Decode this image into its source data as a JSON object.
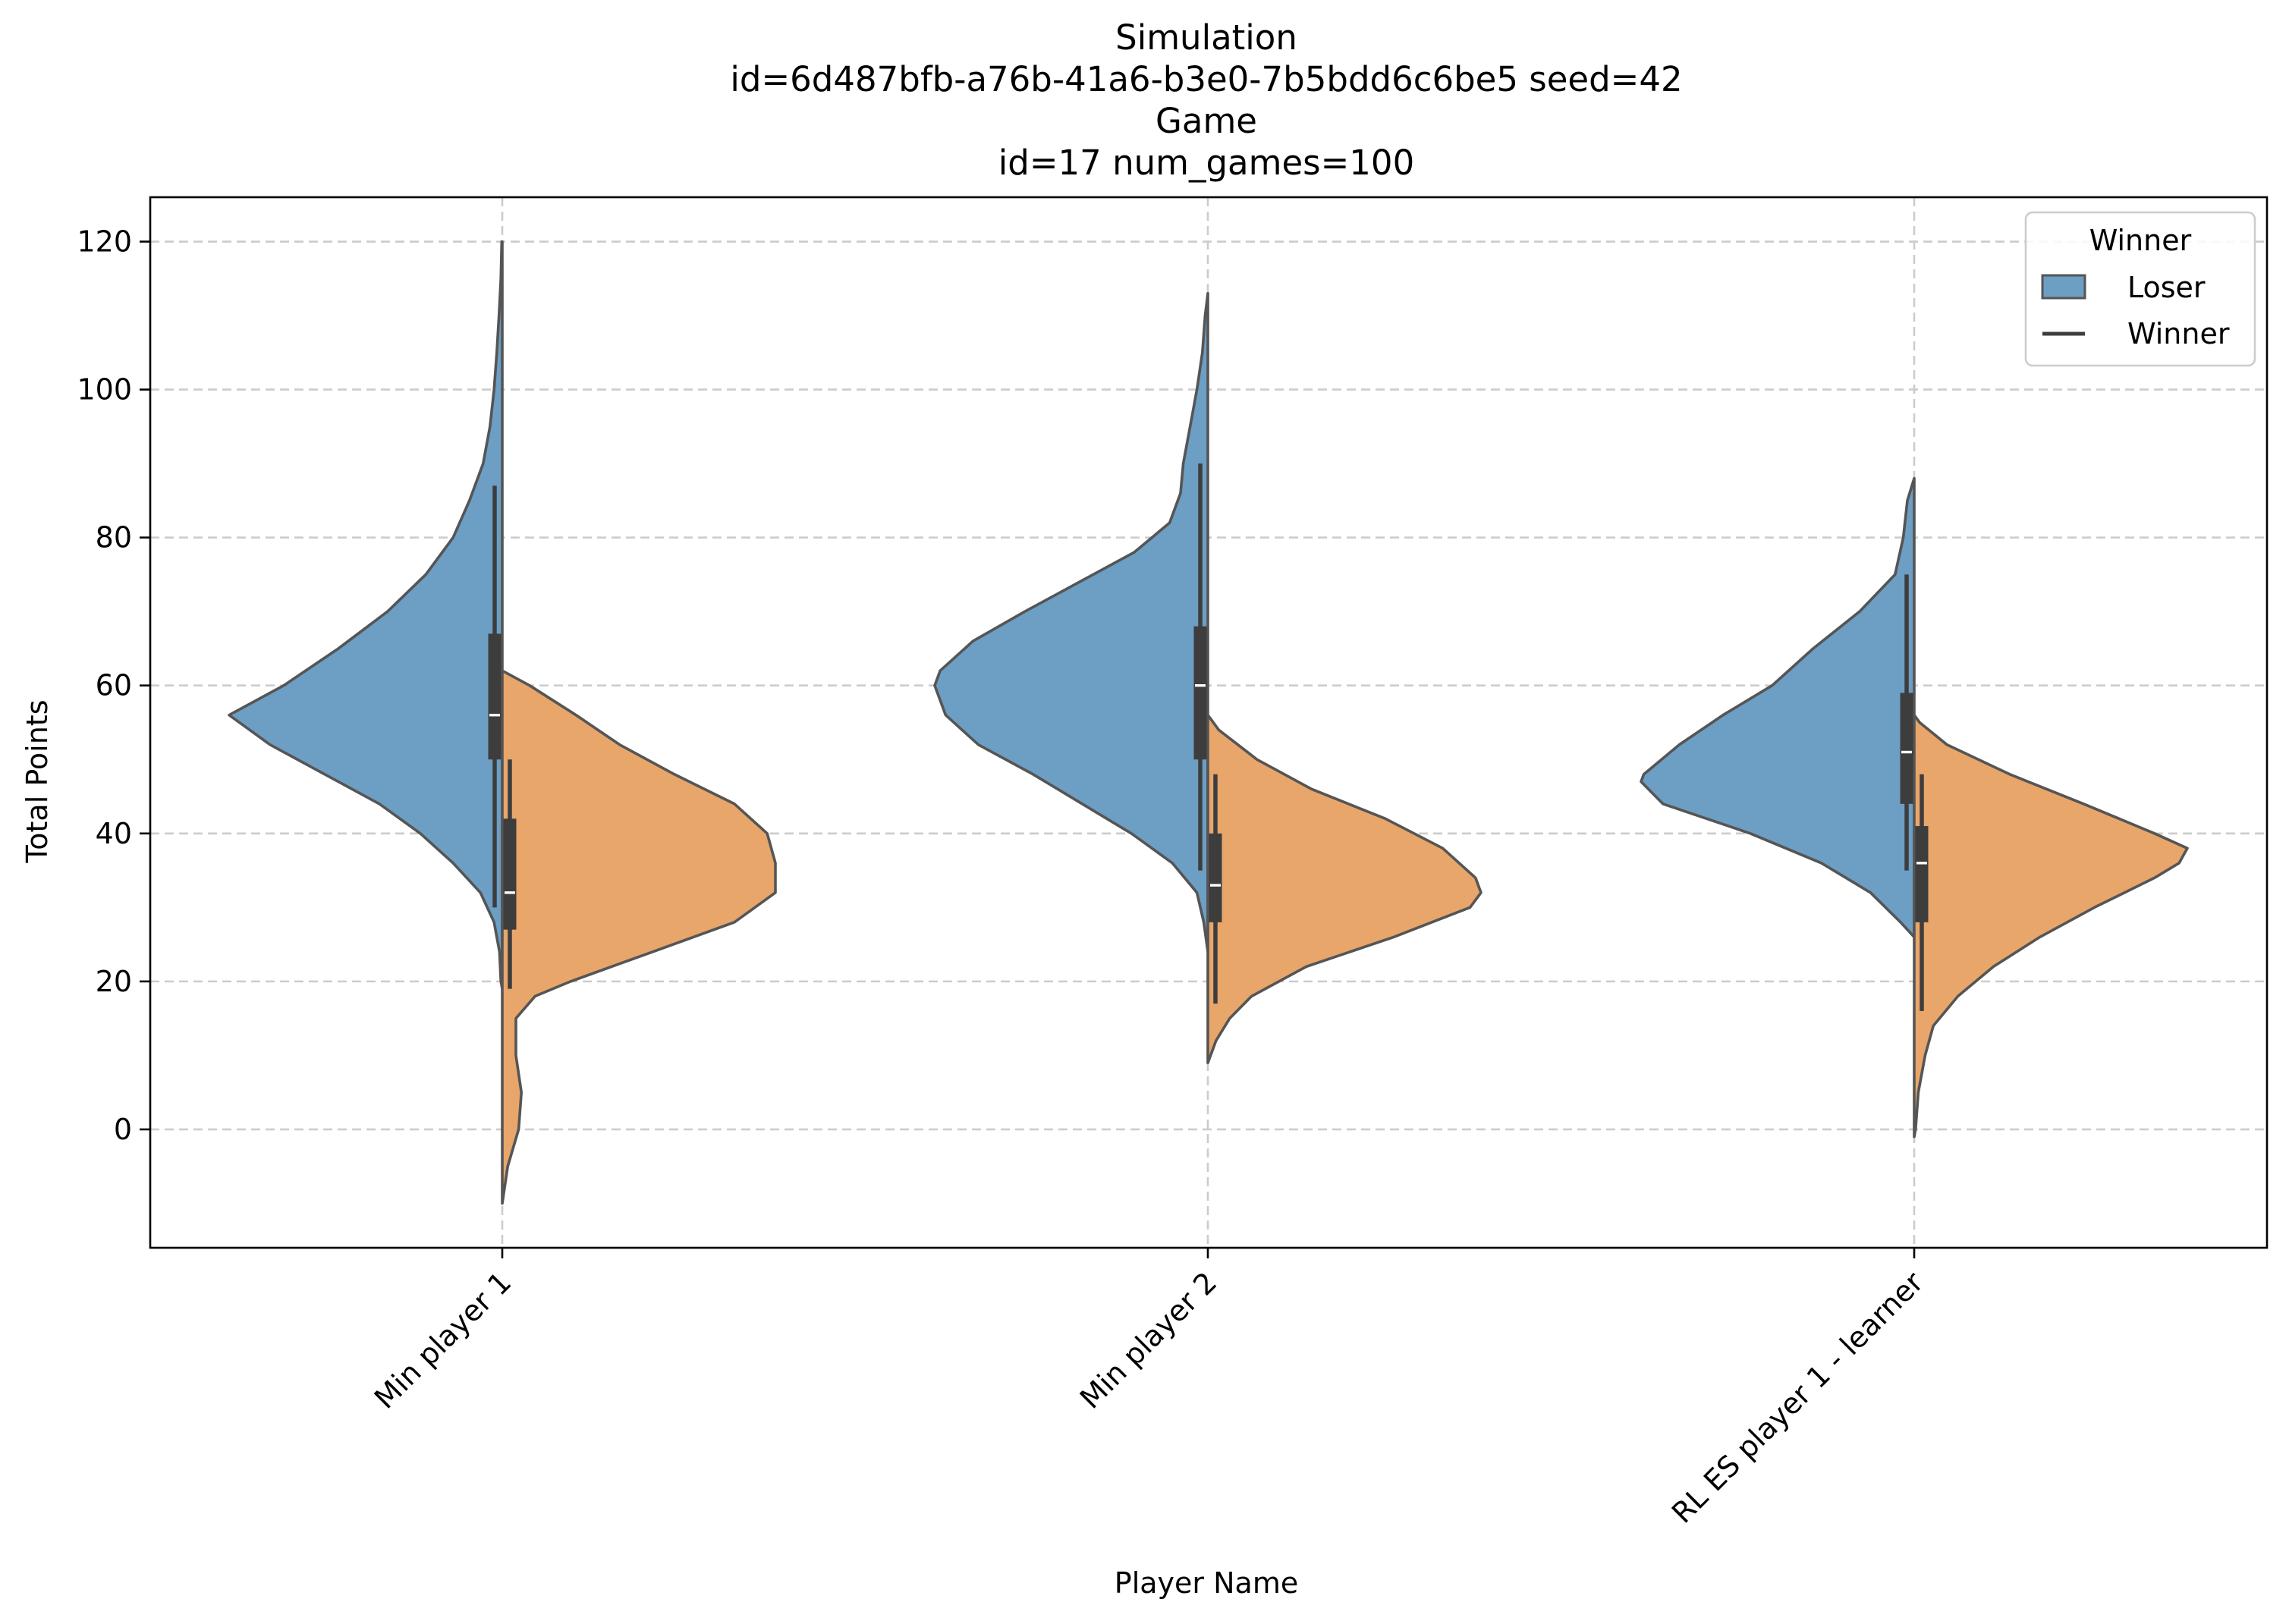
{
  "chart_data": {
    "type": "violin",
    "title": [
      "Simulation",
      "id=6d487bfb-a76b-41a6-b3e0-7b5bdd6c6be5 seed=42",
      "Game",
      "id=17 num_games=100"
    ],
    "xlabel": "Player Name",
    "ylabel": "Total Points",
    "ylim": [
      -16,
      126
    ],
    "yticks": [
      0,
      20,
      40,
      60,
      80,
      100,
      120
    ],
    "ytick_labels": [
      "0",
      "20",
      "40",
      "60",
      "80",
      "100",
      "120"
    ],
    "grid": true,
    "categories": [
      "Min player 1",
      "Min player 2",
      "RL ES player 1 - learner"
    ],
    "legend": {
      "title": "Winner",
      "placement": "top-right",
      "entries": [
        {
          "label": "Loser",
          "marker": "patch",
          "color": "#6d9ec4"
        },
        {
          "label": "Winner",
          "marker": "line",
          "color": "#3d3d3d"
        }
      ]
    },
    "split": true,
    "series": [
      {
        "name": "Loser",
        "side": "left",
        "color": "#6d9ec4",
        "violins": [
          {
            "category": "Min player 1",
            "profile": [
              [
                120,
                0.002
              ],
              [
                115,
                0.005
              ],
              [
                110,
                0.012
              ],
              [
                105,
                0.02
              ],
              [
                100,
                0.03
              ],
              [
                95,
                0.045
              ],
              [
                90,
                0.07
              ],
              [
                85,
                0.12
              ],
              [
                80,
                0.18
              ],
              [
                75,
                0.28
              ],
              [
                70,
                0.42
              ],
              [
                65,
                0.6
              ],
              [
                60,
                0.8
              ],
              [
                56,
                1.0
              ],
              [
                52,
                0.85
              ],
              [
                48,
                0.65
              ],
              [
                44,
                0.45
              ],
              [
                40,
                0.3
              ],
              [
                36,
                0.18
              ],
              [
                32,
                0.08
              ],
              [
                28,
                0.03
              ],
              [
                24,
                0.01
              ],
              [
                20,
                0.005
              ],
              [
                19,
                0.0
              ]
            ],
            "box": {
              "whisker_low": 30,
              "q1": 50,
              "median": 56,
              "q3": 67,
              "whisker_high": 87
            }
          },
          {
            "category": "Min player 2",
            "profile": [
              [
                113,
                0.0
              ],
              [
                110,
                0.01
              ],
              [
                105,
                0.02
              ],
              [
                100,
                0.04
              ],
              [
                95,
                0.065
              ],
              [
                90,
                0.09
              ],
              [
                86,
                0.1
              ],
              [
                82,
                0.14
              ],
              [
                78,
                0.27
              ],
              [
                74,
                0.47
              ],
              [
                70,
                0.67
              ],
              [
                66,
                0.86
              ],
              [
                62,
                0.98
              ],
              [
                60,
                1.0
              ],
              [
                56,
                0.96
              ],
              [
                52,
                0.84
              ],
              [
                48,
                0.64
              ],
              [
                44,
                0.46
              ],
              [
                40,
                0.28
              ],
              [
                36,
                0.13
              ],
              [
                32,
                0.04
              ],
              [
                28,
                0.015
              ],
              [
                24,
                0.0
              ]
            ],
            "box": {
              "whisker_low": 35,
              "q1": 50,
              "median": 60,
              "q3": 68,
              "whisker_high": 90
            }
          },
          {
            "category": "RL ES player 1 - learner",
            "profile": [
              [
                88,
                0.0
              ],
              [
                85,
                0.025
              ],
              [
                80,
                0.04
              ],
              [
                75,
                0.07
              ],
              [
                70,
                0.2
              ],
              [
                65,
                0.37
              ],
              [
                60,
                0.52
              ],
              [
                56,
                0.7
              ],
              [
                52,
                0.86
              ],
              [
                48,
                0.99
              ],
              [
                47,
                1.0
              ],
              [
                44,
                0.92
              ],
              [
                40,
                0.6
              ],
              [
                36,
                0.34
              ],
              [
                32,
                0.16
              ],
              [
                28,
                0.05
              ],
              [
                26,
                0.0
              ]
            ],
            "box": {
              "whisker_low": 35,
              "q1": 44,
              "median": 51,
              "q3": 59,
              "whisker_high": 75
            }
          }
        ]
      },
      {
        "name": "Winner",
        "side": "right",
        "color": "#e8a66b",
        "violins": [
          {
            "category": "Min player 1",
            "profile": [
              [
                62,
                0.0
              ],
              [
                60,
                0.1
              ],
              [
                56,
                0.27
              ],
              [
                52,
                0.43
              ],
              [
                48,
                0.63
              ],
              [
                44,
                0.85
              ],
              [
                40,
                0.97
              ],
              [
                36,
                1.0
              ],
              [
                32,
                1.0
              ],
              [
                28,
                0.85
              ],
              [
                24,
                0.55
              ],
              [
                20,
                0.25
              ],
              [
                18,
                0.12
              ],
              [
                15,
                0.05
              ],
              [
                10,
                0.05
              ],
              [
                5,
                0.07
              ],
              [
                0,
                0.06
              ],
              [
                -5,
                0.02
              ],
              [
                -10,
                0.0
              ]
            ],
            "box": {
              "whisker_low": 19,
              "q1": 27,
              "median": 32,
              "q3": 42,
              "whisker_high": 50
            }
          },
          {
            "category": "Min player 2",
            "profile": [
              [
                56,
                0.0
              ],
              [
                54,
                0.04
              ],
              [
                50,
                0.18
              ],
              [
                46,
                0.38
              ],
              [
                42,
                0.65
              ],
              [
                38,
                0.86
              ],
              [
                34,
                0.98
              ],
              [
                32,
                1.0
              ],
              [
                30,
                0.96
              ],
              [
                26,
                0.68
              ],
              [
                22,
                0.36
              ],
              [
                18,
                0.16
              ],
              [
                15,
                0.08
              ],
              [
                12,
                0.03
              ],
              [
                9,
                0.0
              ]
            ],
            "box": {
              "whisker_low": 17,
              "q1": 28,
              "median": 33,
              "q3": 40,
              "whisker_high": 48
            }
          },
          {
            "category": "RL ES player 1 - learner",
            "profile": [
              [
                56,
                0.0
              ],
              [
                55,
                0.02
              ],
              [
                52,
                0.12
              ],
              [
                48,
                0.35
              ],
              [
                44,
                0.62
              ],
              [
                40,
                0.88
              ],
              [
                38,
                1.0
              ],
              [
                36,
                0.97
              ],
              [
                34,
                0.88
              ],
              [
                30,
                0.66
              ],
              [
                26,
                0.46
              ],
              [
                22,
                0.29
              ],
              [
                18,
                0.16
              ],
              [
                14,
                0.07
              ],
              [
                10,
                0.04
              ],
              [
                5,
                0.015
              ],
              [
                0,
                0.005
              ],
              [
                -1,
                0.0
              ]
            ],
            "box": {
              "whisker_low": 16,
              "q1": 28,
              "median": 36,
              "q3": 41,
              "whisker_high": 48
            }
          }
        ]
      }
    ]
  }
}
